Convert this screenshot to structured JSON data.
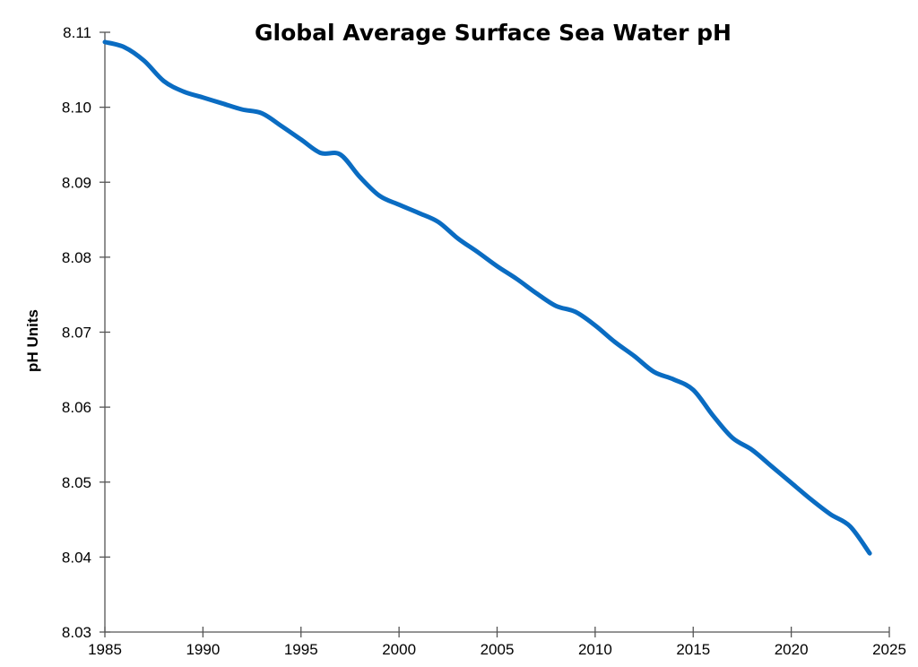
{
  "chart_data": {
    "type": "line",
    "title": "Global Average Surface Sea Water pH",
    "xlabel": "",
    "ylabel": "pH Units",
    "xlim": [
      1985,
      2025
    ],
    "ylim": [
      8.03,
      8.11
    ],
    "xticks": [
      "1985",
      "1990",
      "1995",
      "2000",
      "2005",
      "2010",
      "2015",
      "2020",
      "2025"
    ],
    "yticks": [
      "8.03",
      "8.04",
      "8.05",
      "8.06",
      "8.07",
      "8.08",
      "8.09",
      "8.10",
      "8.11"
    ],
    "grid": false,
    "legend": "none",
    "line_color": "#0a6cc2",
    "x": [
      1985,
      1986,
      1987,
      1988,
      1989,
      1990,
      1991,
      1992,
      1993,
      1994,
      1995,
      1996,
      1997,
      1998,
      1999,
      2000,
      2001,
      2002,
      2003,
      2004,
      2005,
      2006,
      2007,
      2008,
      2009,
      2010,
      2011,
      2012,
      2013,
      2014,
      2015,
      2016,
      2017,
      2018,
      2019,
      2020,
      2021,
      2022,
      2023,
      2024
    ],
    "values": [
      8.1087,
      8.108,
      8.1062,
      8.1035,
      8.1021,
      8.1013,
      8.1005,
      8.0997,
      8.0992,
      8.0975,
      8.0957,
      8.0939,
      8.0937,
      8.0907,
      8.0882,
      8.087,
      8.0859,
      8.0847,
      8.0825,
      8.0807,
      8.0788,
      8.0771,
      8.0752,
      8.0735,
      8.0727,
      8.0709,
      8.0687,
      8.0668,
      8.0647,
      8.0637,
      8.0623,
      8.0589,
      8.0559,
      8.0543,
      8.0521,
      8.0499,
      8.0477,
      8.0457,
      8.0441,
      8.0405
    ]
  }
}
